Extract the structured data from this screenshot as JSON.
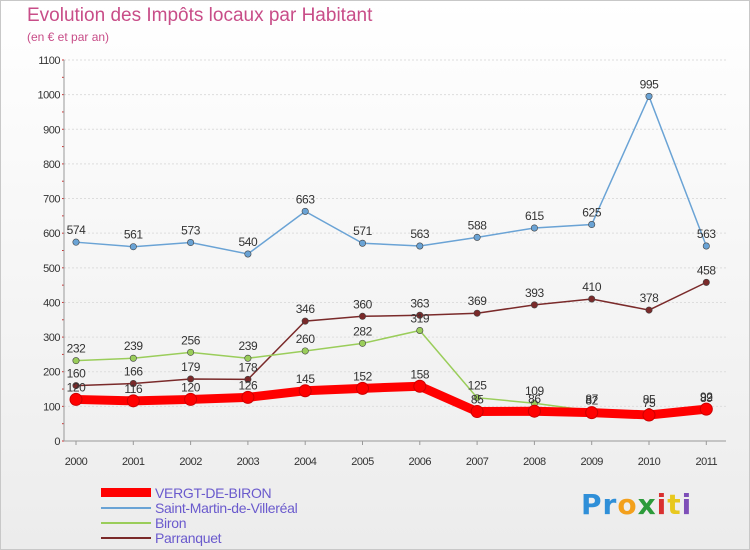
{
  "title": "Evolution des Impôts locaux par Habitant",
  "subtitle": "(en € et par an)",
  "logo": {
    "letters": [
      "P",
      "r",
      "o",
      "x",
      "i",
      "t",
      "i"
    ],
    "colors": [
      "#2f8fd8",
      "#2f8fd8",
      "#f3a01c",
      "#2c9b3a",
      "#d93030",
      "#e8c81e",
      "#7e4fb8"
    ]
  },
  "chart_data": {
    "type": "line",
    "x": [
      "2000",
      "2001",
      "2002",
      "2003",
      "2004",
      "2005",
      "2006",
      "2007",
      "2008",
      "2009",
      "2010",
      "2011"
    ],
    "ylim": [
      0,
      1100
    ],
    "yticks": [
      0,
      100,
      200,
      300,
      400,
      500,
      600,
      700,
      800,
      900,
      1000,
      1100
    ],
    "grid": true,
    "legend_position": "bottom-left",
    "series": [
      {
        "name": "VERGT-DE-BIRON",
        "color": "#ff0000",
        "values": [
          120,
          116,
          120,
          126,
          145,
          152,
          158,
          85,
          86,
          82,
          75,
          92
        ],
        "labels": [
          "120",
          "116",
          "120",
          "126",
          "145",
          "152",
          "158",
          "85",
          "86",
          "82",
          "75",
          "92"
        ]
      },
      {
        "name": "Saint-Martin-de-Villeréal",
        "color": "#6aa3d5",
        "values": [
          574,
          561,
          573,
          540,
          663,
          571,
          563,
          588,
          615,
          625,
          995,
          563
        ],
        "labels": [
          "574",
          "561",
          "573",
          "540",
          "663",
          "571",
          "563",
          "588",
          "615",
          "625",
          "995",
          "563"
        ]
      },
      {
        "name": "Biron",
        "color": "#9acd5a",
        "values": [
          232,
          239,
          256,
          239,
          260,
          282,
          319,
          125,
          109,
          87,
          85,
          89
        ],
        "labels": [
          "232",
          "239",
          "256",
          "239",
          "260",
          "282",
          "319",
          "125",
          "109",
          "87",
          "85",
          "89"
        ]
      },
      {
        "name": "Parranquet",
        "color": "#7a2a2a",
        "values": [
          160,
          166,
          179,
          178,
          346,
          360,
          363,
          369,
          393,
          410,
          378,
          458
        ],
        "labels": [
          "160",
          "166",
          "179",
          "178",
          "346",
          "360",
          "363",
          "369",
          "393",
          "410",
          "378",
          "458"
        ]
      }
    ]
  }
}
